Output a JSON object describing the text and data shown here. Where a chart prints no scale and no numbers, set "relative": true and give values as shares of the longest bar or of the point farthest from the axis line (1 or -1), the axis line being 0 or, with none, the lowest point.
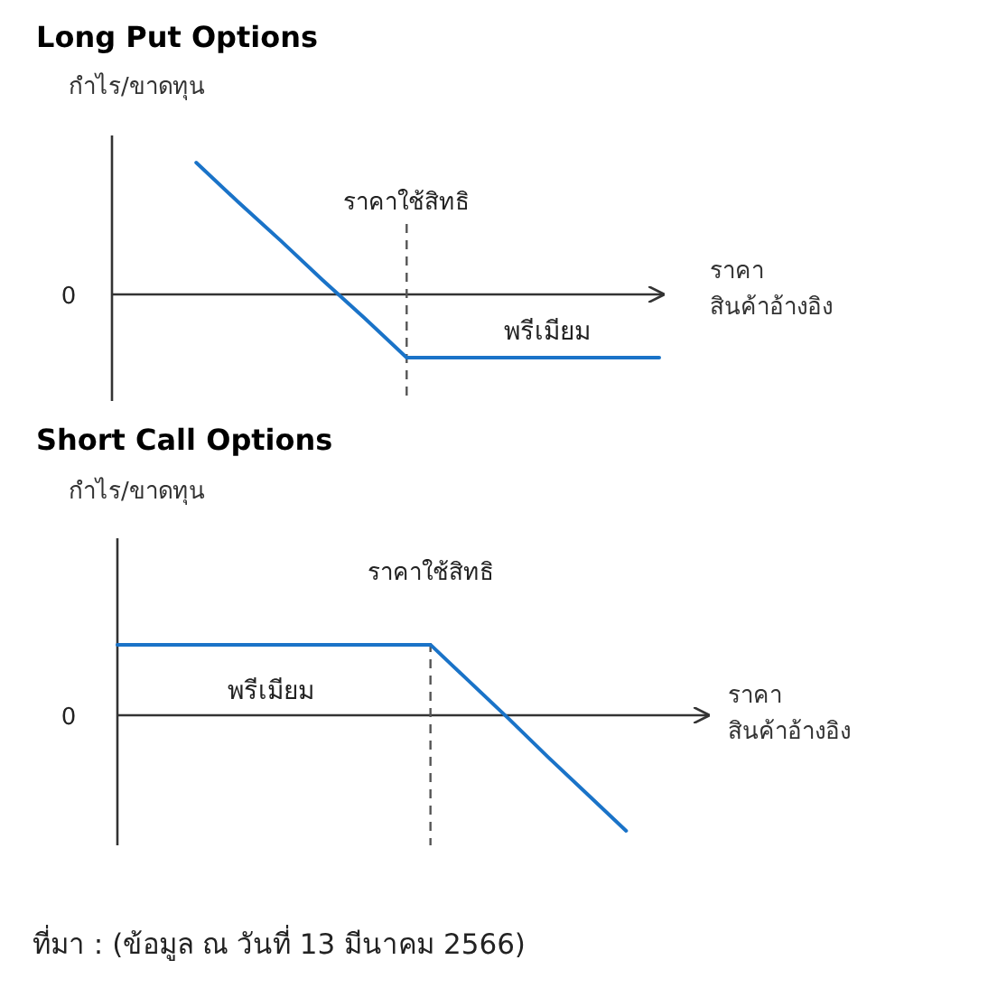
{
  "chart_data": [
    {
      "type": "line",
      "title": "Long Put Options",
      "ylabel": "กำไร/ขาดทุน",
      "xlabel": "ราคา\nสินค้าอ้างอิง",
      "relative": true,
      "categories": [
        null,
        null,
        null,
        null,
        null,
        null,
        null,
        null,
        null,
        null,
        null,
        null,
        null,
        null
      ],
      "series": [
        {
          "color": "#1a73c8",
          "values": [
            null,
            null,
            1.0,
            0.7,
            0.41,
            0.11,
            -0.18,
            -0.48,
            -0.48,
            -0.48,
            -0.48,
            -0.48,
            -0.48,
            -0.48
          ]
        }
      ],
      "annotations": [
        "ราคาใช้สิทธิ",
        "พรีเมียม",
        "0"
      ]
    },
    {
      "type": "line",
      "title": "Short Call Options",
      "ylabel": "กำไร/ขาดทุน",
      "xlabel": "ราคา\nสินค้าอ้างอิง",
      "relative": true,
      "categories": [
        null,
        null,
        null,
        null,
        null,
        null,
        null,
        null,
        null,
        null,
        null,
        null,
        null,
        null,
        null,
        null
      ],
      "series": [
        {
          "color": "#1a73c8",
          "values": [
            0.61,
            0.61,
            0.61,
            0.61,
            0.61,
            0.61,
            0.61,
            0.61,
            0.61,
            0.29,
            -0.03,
            -0.36,
            -0.68,
            -1.0,
            null,
            null
          ]
        }
      ],
      "annotations": [
        "ราคาใช้สิทธิ",
        "พรีเมียม",
        "0",
        "ที่มา : (ข้อมูล ณ วันที่ 13 มีนาคม 2566)"
      ]
    }
  ]
}
